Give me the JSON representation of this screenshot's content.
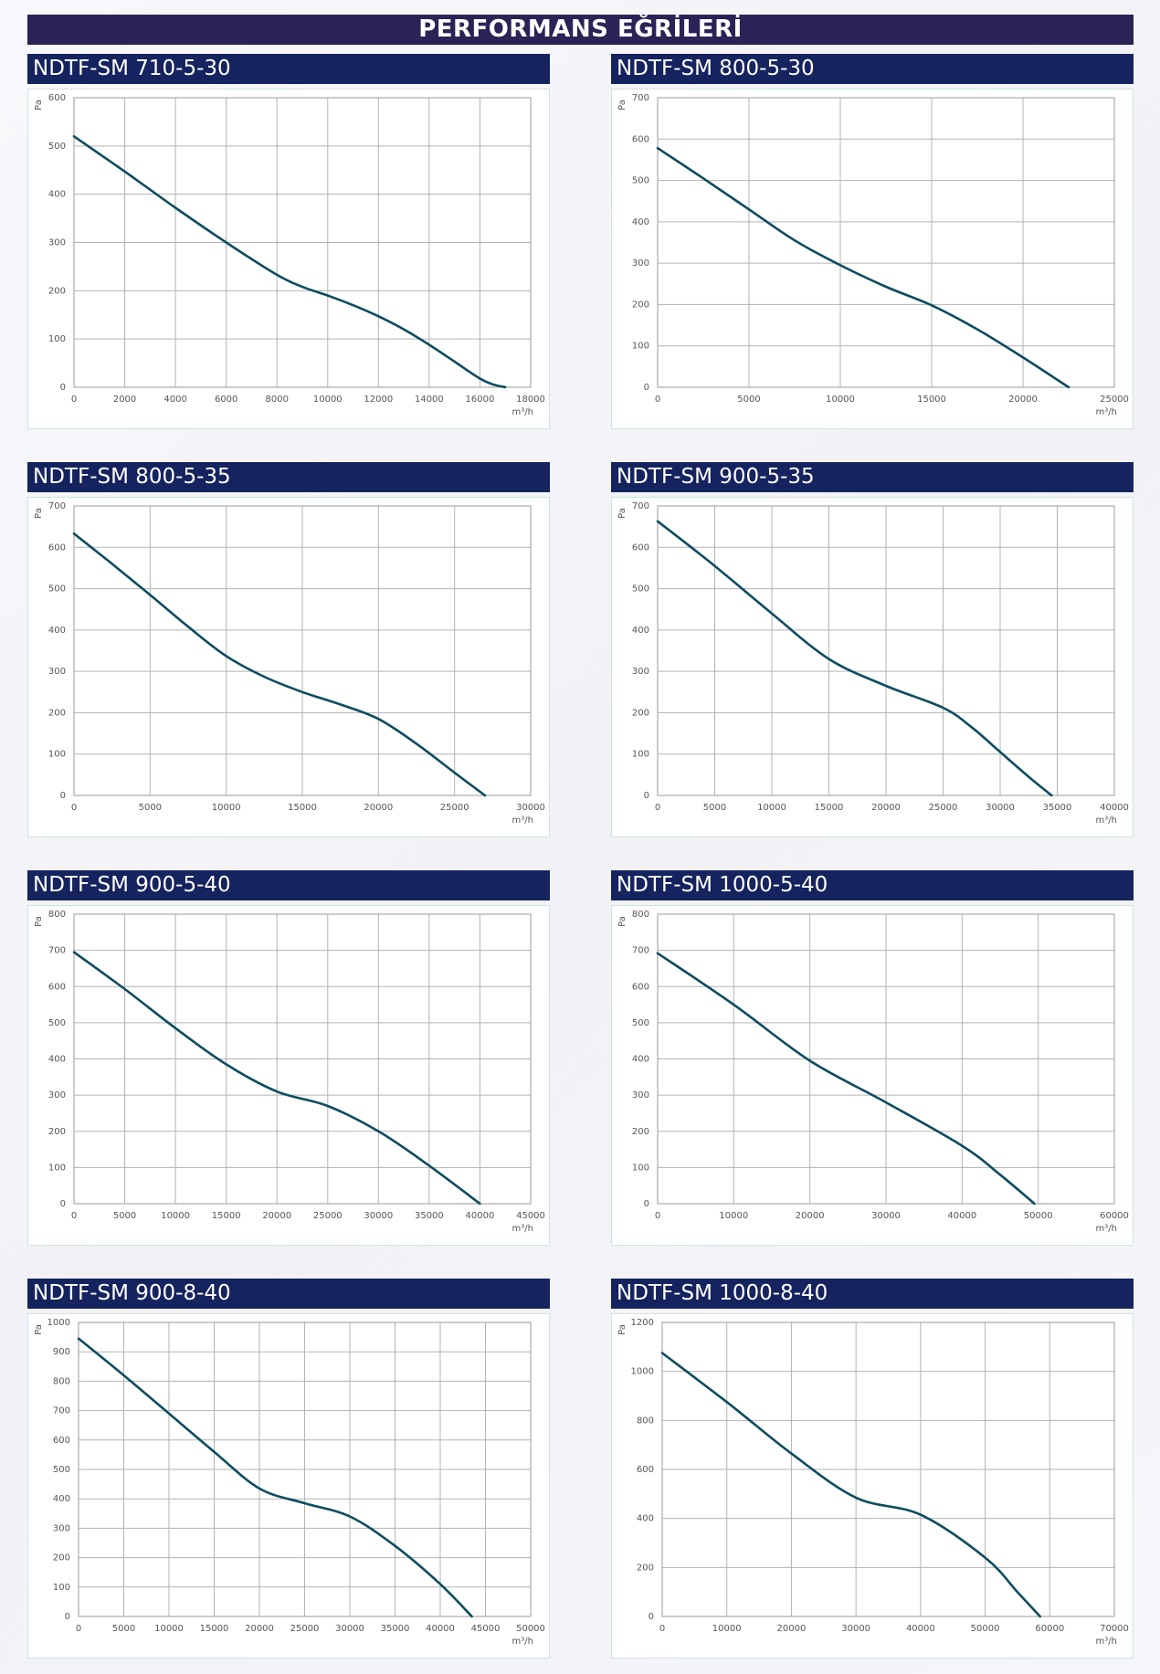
{
  "page": {
    "title": "PERFORMANS EĞRİLERİ"
  },
  "chart_data": [
    {
      "type": "line",
      "title": "NDTF-SM 710-5-30",
      "xlabel": "m³/h",
      "ylabel": "Pa",
      "xlim": [
        0,
        18000
      ],
      "ylim": [
        0,
        600
      ],
      "xticks": [
        0,
        2000,
        4000,
        6000,
        8000,
        10000,
        12000,
        14000,
        16000,
        18000
      ],
      "yticks": [
        0,
        100,
        200,
        300,
        400,
        500,
        600
      ],
      "grid": true,
      "series": [
        {
          "x": [
            0,
            2000,
            4000,
            6000,
            8000,
            9000,
            10000,
            11000,
            12000,
            13000,
            14000,
            15000,
            16000,
            16500,
            17000
          ],
          "y": [
            520,
            447,
            372,
            300,
            233,
            208,
            190,
            170,
            147,
            120,
            88,
            53,
            18,
            6,
            0
          ]
        }
      ]
    },
    {
      "type": "line",
      "title": "NDTF-SM 800-5-30",
      "xlabel": "m³/h",
      "ylabel": "Pa",
      "xlim": [
        0,
        25000
      ],
      "ylim": [
        0,
        700
      ],
      "xticks": [
        0,
        5000,
        10000,
        15000,
        20000,
        25000
      ],
      "yticks": [
        0,
        100,
        200,
        300,
        400,
        500,
        600,
        700
      ],
      "grid": true,
      "series": [
        {
          "x": [
            0,
            2500,
            5000,
            7500,
            10000,
            12500,
            15000,
            17500,
            20000,
            22500
          ],
          "y": [
            578,
            505,
            430,
            355,
            295,
            243,
            198,
            140,
            72,
            0
          ]
        }
      ]
    },
    {
      "type": "line",
      "title": "NDTF-SM 800-5-35",
      "xlabel": "m³/h",
      "ylabel": "Pa",
      "xlim": [
        0,
        30000
      ],
      "ylim": [
        0,
        700
      ],
      "xticks": [
        0,
        5000,
        10000,
        15000,
        20000,
        25000,
        30000
      ],
      "yticks": [
        0,
        100,
        200,
        300,
        400,
        500,
        600,
        700
      ],
      "grid": true,
      "series": [
        {
          "x": [
            0,
            2500,
            5000,
            7500,
            10000,
            12500,
            15000,
            17500,
            20000,
            22500,
            25000,
            27000
          ],
          "y": [
            633,
            560,
            485,
            408,
            337,
            287,
            250,
            220,
            185,
            125,
            55,
            0
          ]
        }
      ]
    },
    {
      "type": "line",
      "title": "NDTF-SM 900-5-35",
      "xlabel": "m³/h",
      "ylabel": "Pa",
      "xlim": [
        0,
        40000
      ],
      "ylim": [
        0,
        700
      ],
      "xticks": [
        0,
        5000,
        10000,
        15000,
        20000,
        25000,
        30000,
        35000,
        40000
      ],
      "yticks": [
        0,
        100,
        200,
        300,
        400,
        500,
        600,
        700
      ],
      "grid": true,
      "series": [
        {
          "x": [
            0,
            5000,
            10000,
            15000,
            20000,
            25000,
            27500,
            30000,
            32500,
            34500
          ],
          "y": [
            663,
            555,
            440,
            330,
            265,
            212,
            165,
            105,
            45,
            0
          ]
        }
      ]
    },
    {
      "type": "line",
      "title": "NDTF-SM 900-5-40",
      "xlabel": "m³/h",
      "ylabel": "Pa",
      "xlim": [
        0,
        45000
      ],
      "ylim": [
        0,
        800
      ],
      "xticks": [
        0,
        5000,
        10000,
        15000,
        20000,
        25000,
        30000,
        35000,
        40000,
        45000
      ],
      "yticks": [
        0,
        100,
        200,
        300,
        400,
        500,
        600,
        700,
        800
      ],
      "grid": true,
      "series": [
        {
          "x": [
            0,
            5000,
            10000,
            15000,
            20000,
            25000,
            30000,
            35000,
            40000
          ],
          "y": [
            695,
            593,
            485,
            385,
            310,
            270,
            200,
            105,
            0
          ]
        }
      ]
    },
    {
      "type": "line",
      "title": "NDTF-SM 1000-5-40",
      "xlabel": "m³/h",
      "ylabel": "Pa",
      "xlim": [
        0,
        60000
      ],
      "ylim": [
        0,
        800
      ],
      "xticks": [
        0,
        10000,
        20000,
        30000,
        40000,
        50000,
        60000
      ],
      "yticks": [
        0,
        100,
        200,
        300,
        400,
        500,
        600,
        700,
        800
      ],
      "grid": true,
      "series": [
        {
          "x": [
            0,
            10000,
            20000,
            30000,
            40000,
            45000,
            49500
          ],
          "y": [
            692,
            550,
            395,
            280,
            160,
            80,
            0
          ]
        }
      ]
    },
    {
      "type": "line",
      "title": "NDTF-SM 900-8-40",
      "xlabel": "m³/h",
      "ylabel": "Pa",
      "xlim": [
        0,
        50000
      ],
      "ylim": [
        0,
        1000
      ],
      "xticks": [
        0,
        5000,
        10000,
        15000,
        20000,
        25000,
        30000,
        35000,
        40000,
        45000,
        50000
      ],
      "yticks": [
        0,
        100,
        200,
        300,
        400,
        500,
        600,
        700,
        800,
        900,
        1000
      ],
      "grid": true,
      "series": [
        {
          "x": [
            0,
            5000,
            10000,
            15000,
            20000,
            25000,
            30000,
            35000,
            40000,
            43500
          ],
          "y": [
            945,
            820,
            690,
            560,
            435,
            385,
            340,
            240,
            110,
            0
          ]
        }
      ]
    },
    {
      "type": "line",
      "title": "NDTF-SM 1000-8-40",
      "xlabel": "m³/h",
      "ylabel": "Pa",
      "xlim": [
        0,
        70000
      ],
      "ylim": [
        0,
        1200
      ],
      "xticks": [
        0,
        10000,
        20000,
        30000,
        40000,
        50000,
        60000,
        70000
      ],
      "yticks": [
        0,
        200,
        400,
        600,
        800,
        1000,
        1200
      ],
      "grid": true,
      "series": [
        {
          "x": [
            0,
            10000,
            20000,
            30000,
            40000,
            50000,
            55000,
            58500
          ],
          "y": [
            1075,
            875,
            665,
            485,
            415,
            240,
            100,
            0
          ]
        }
      ]
    }
  ]
}
